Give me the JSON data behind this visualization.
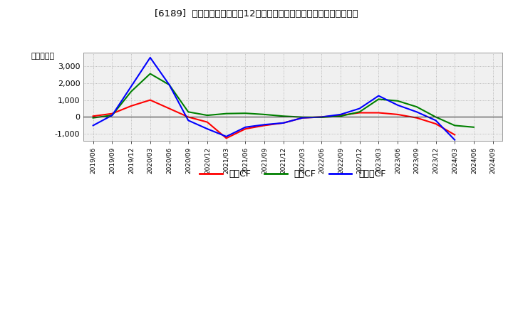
{
  "title": "[6189]  キャッシュフローの12か月移動合計の対前年同期増減額の推移",
  "ylabel": "（百万円）",
  "background_color": "#ffffff",
  "grid_color": "#aaaaaa",
  "plot_bg_color": "#f0f0f0",
  "ylim": [
    -1400,
    3800
  ],
  "yticks": [
    -1000,
    0,
    1000,
    2000,
    3000
  ],
  "dates": [
    "2019/06",
    "2019/09",
    "2019/12",
    "2020/03",
    "2020/06",
    "2020/09",
    "2020/12",
    "2021/03",
    "2021/06",
    "2021/09",
    "2021/12",
    "2022/03",
    "2022/06",
    "2022/09",
    "2022/12",
    "2023/03",
    "2023/06",
    "2023/09",
    "2023/12",
    "2024/03",
    "2024/06",
    "2024/09"
  ],
  "operating_cf": [
    50,
    200,
    650,
    1000,
    500,
    0,
    -300,
    -1250,
    -700,
    -500,
    -350,
    -50,
    0,
    100,
    250,
    250,
    150,
    -50,
    -400,
    -1050,
    null,
    null
  ],
  "investing_cf": [
    -50,
    100,
    1500,
    2550,
    1900,
    300,
    100,
    200,
    220,
    150,
    50,
    -10,
    -20,
    50,
    300,
    1050,
    950,
    600,
    0,
    -500,
    -600,
    null
  ],
  "free_cf": [
    -500,
    100,
    1800,
    3500,
    1900,
    -200,
    -700,
    -1150,
    -600,
    -450,
    -350,
    -50,
    0,
    150,
    500,
    1250,
    700,
    300,
    -200,
    -1350,
    null,
    null
  ],
  "line_colors": {
    "operating": "#ff0000",
    "investing": "#008000",
    "free": "#0000ff"
  },
  "line_width": 1.5,
  "legend_labels": {
    "operating": "営業CF",
    "investing": "投資CF",
    "free": "フリーCF"
  }
}
